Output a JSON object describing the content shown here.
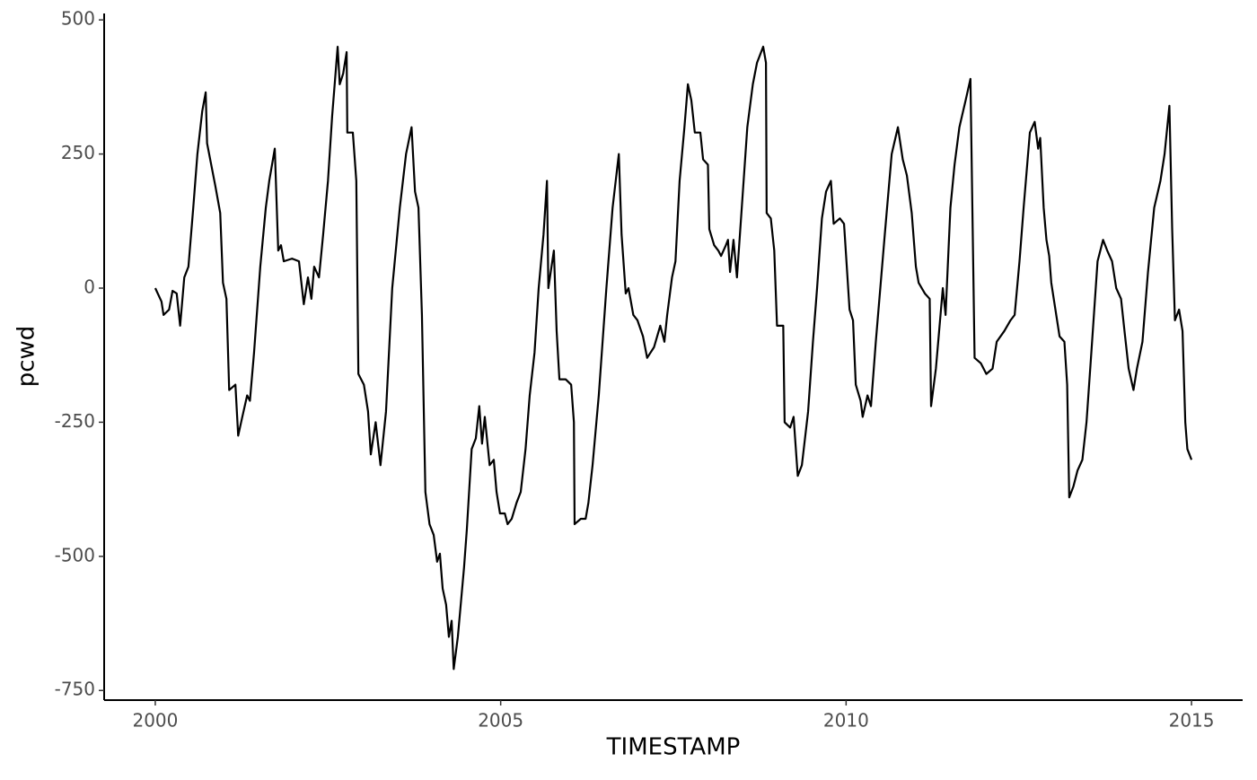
{
  "chart_data": {
    "type": "line",
    "x_label": "TIMESTAMP",
    "y_label": "pcwd",
    "x": [
      2000.0,
      2000.09,
      2000.12,
      2000.2,
      2000.25,
      2000.31,
      2000.36,
      2000.42,
      2000.48,
      2000.55,
      2000.61,
      2000.68,
      2000.73,
      2000.75,
      2000.81,
      2000.87,
      2000.94,
      2000.98,
      2001.03,
      2001.07,
      2001.16,
      2001.2,
      2001.26,
      2001.33,
      2001.37,
      2001.43,
      2001.52,
      2001.6,
      2001.65,
      2001.73,
      2001.78,
      2001.82,
      2001.86,
      2001.98,
      2002.08,
      2002.15,
      2002.21,
      2002.26,
      2002.3,
      2002.37,
      2002.43,
      2002.5,
      2002.56,
      2002.64,
      2002.67,
      2002.72,
      2002.77,
      2002.78,
      2002.86,
      2002.91,
      2002.94,
      2003.02,
      2003.08,
      2003.12,
      2003.19,
      2003.26,
      2003.34,
      2003.43,
      2003.54,
      2003.63,
      2003.71,
      2003.76,
      2003.81,
      2003.86,
      2003.91,
      2003.97,
      2004.03,
      2004.08,
      2004.12,
      2004.16,
      2004.21,
      2004.25,
      2004.29,
      2004.32,
      2004.38,
      2004.47,
      2004.51,
      2004.58,
      2004.64,
      2004.69,
      2004.73,
      2004.77,
      2004.84,
      2004.9,
      2004.94,
      2004.99,
      2005.06,
      2005.1,
      2005.16,
      2005.23,
      2005.29,
      2005.36,
      2005.42,
      2005.49,
      2005.55,
      2005.62,
      2005.67,
      2005.69,
      2005.77,
      2005.81,
      2005.85,
      2005.94,
      2006.02,
      2006.06,
      2006.07,
      2006.16,
      2006.23,
      2006.27,
      2006.33,
      2006.42,
      2006.53,
      2006.62,
      2006.71,
      2006.75,
      2006.81,
      2006.85,
      2006.92,
      2006.98,
      2007.06,
      2007.12,
      2007.22,
      2007.31,
      2007.37,
      2007.41,
      2007.45,
      2007.48,
      2007.53,
      2007.59,
      2007.66,
      2007.71,
      2007.76,
      2007.81,
      2007.89,
      2007.93,
      2008.0,
      2008.02,
      2008.09,
      2008.15,
      2008.19,
      2008.26,
      2008.29,
      2008.32,
      2008.37,
      2008.42,
      2008.49,
      2008.57,
      2008.65,
      2008.71,
      2008.8,
      2008.84,
      2008.85,
      2008.91,
      2008.96,
      2009.0,
      2009.09,
      2009.11,
      2009.19,
      2009.24,
      2009.3,
      2009.36,
      2009.45,
      2009.52,
      2009.58,
      2009.65,
      2009.71,
      2009.78,
      2009.82,
      2009.91,
      2009.97,
      2010.05,
      2010.1,
      2010.14,
      2010.21,
      2010.24,
      2010.31,
      2010.36,
      2010.43,
      2010.56,
      2010.66,
      2010.75,
      2010.82,
      2010.88,
      2010.95,
      2011.01,
      2011.05,
      2011.14,
      2011.21,
      2011.23,
      2011.3,
      2011.4,
      2011.44,
      2011.51,
      2011.57,
      2011.64,
      2011.73,
      2011.8,
      2011.86,
      2011.95,
      2012.03,
      2012.12,
      2012.18,
      2012.29,
      2012.38,
      2012.44,
      2012.51,
      2012.57,
      2012.66,
      2012.73,
      2012.78,
      2012.81,
      2012.86,
      2012.9,
      2012.94,
      2012.97,
      2013.03,
      2013.09,
      2013.16,
      2013.2,
      2013.23,
      2013.29,
      2013.35,
      2013.42,
      2013.48,
      2013.55,
      2013.64,
      2013.72,
      2013.78,
      2013.85,
      2013.91,
      2013.98,
      2014.03,
      2014.09,
      2014.16,
      2014.21,
      2014.29,
      2014.37,
      2014.46,
      2014.55,
      2014.61,
      2014.68,
      2014.72,
      2014.76,
      2014.82,
      2014.87,
      2014.91,
      2014.94,
      2015.0
    ],
    "series": [
      {
        "color": "#000000",
        "values": [
          0,
          -25,
          -50,
          -40,
          -5,
          -10,
          -70,
          20,
          40,
          150,
          250,
          330,
          365,
          270,
          230,
          190,
          140,
          10,
          -20,
          -190,
          -180,
          -275,
          -240,
          -200,
          -210,
          -120,
          40,
          150,
          200,
          260,
          70,
          80,
          50,
          55,
          50,
          -30,
          20,
          -20,
          40,
          20,
          100,
          200,
          320,
          450,
          380,
          400,
          440,
          290,
          290,
          200,
          -160,
          -180,
          -230,
          -310,
          -250,
          -330,
          -230,
          0,
          150,
          250,
          300,
          180,
          150,
          -50,
          -380,
          -440,
          -460,
          -510,
          -495,
          -560,
          -590,
          -650,
          -620,
          -710,
          -650,
          -520,
          -450,
          -300,
          -280,
          -220,
          -290,
          -240,
          -330,
          -320,
          -380,
          -420,
          -420,
          -440,
          -430,
          -400,
          -380,
          -300,
          -200,
          -120,
          0,
          100,
          200,
          0,
          70,
          -80,
          -170,
          -170,
          -180,
          -250,
          -440,
          -430,
          -430,
          -400,
          -330,
          -200,
          0,
          150,
          250,
          100,
          -10,
          0,
          -50,
          -60,
          -90,
          -130,
          -110,
          -70,
          -100,
          -50,
          -10,
          20,
          50,
          200,
          300,
          380,
          350,
          290,
          290,
          240,
          230,
          110,
          80,
          70,
          60,
          80,
          90,
          30,
          90,
          20,
          150,
          300,
          380,
          420,
          450,
          420,
          140,
          130,
          70,
          -70,
          -70,
          -250,
          -260,
          -240,
          -350,
          -330,
          -230,
          -100,
          0,
          130,
          180,
          200,
          120,
          130,
          120,
          -40,
          -60,
          -180,
          -210,
          -240,
          -200,
          -220,
          -100,
          100,
          250,
          300,
          240,
          210,
          140,
          40,
          10,
          -10,
          -20,
          -220,
          -150,
          0,
          -50,
          150,
          230,
          300,
          350,
          390,
          -130,
          -140,
          -160,
          -150,
          -100,
          -80,
          -60,
          -50,
          50,
          150,
          290,
          310,
          260,
          280,
          150,
          90,
          60,
          10,
          -40,
          -90,
          -100,
          -180,
          -390,
          -370,
          -340,
          -320,
          -250,
          -120,
          50,
          90,
          70,
          50,
          0,
          -20,
          -80,
          -150,
          -190,
          -150,
          -100,
          30,
          150,
          200,
          250,
          340,
          110,
          -60,
          -40,
          -80,
          -250,
          -300,
          -320
        ]
      }
    ],
    "xlim": [
      1999.26,
      2015.74
    ],
    "ylim": [
      -768,
      512
    ],
    "xticks": [
      2000,
      2005,
      2010,
      2015
    ],
    "yticks": [
      -750,
      -500,
      -250,
      0,
      250,
      500
    ]
  }
}
